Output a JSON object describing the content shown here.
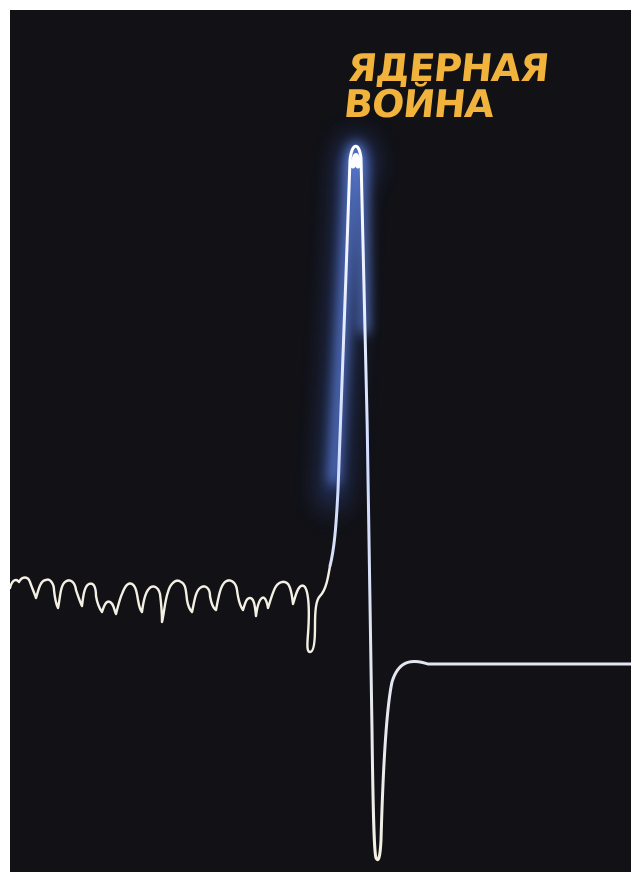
{
  "poster": {
    "title_line1": "ЯДЕРНАЯ",
    "title_line2": "ВОЙНА",
    "colors": {
      "background": "#111116",
      "frame": "#ffffff",
      "title": "#f2b33d",
      "line": "#f4f0e4",
      "glow": "#4d7dff"
    }
  }
}
